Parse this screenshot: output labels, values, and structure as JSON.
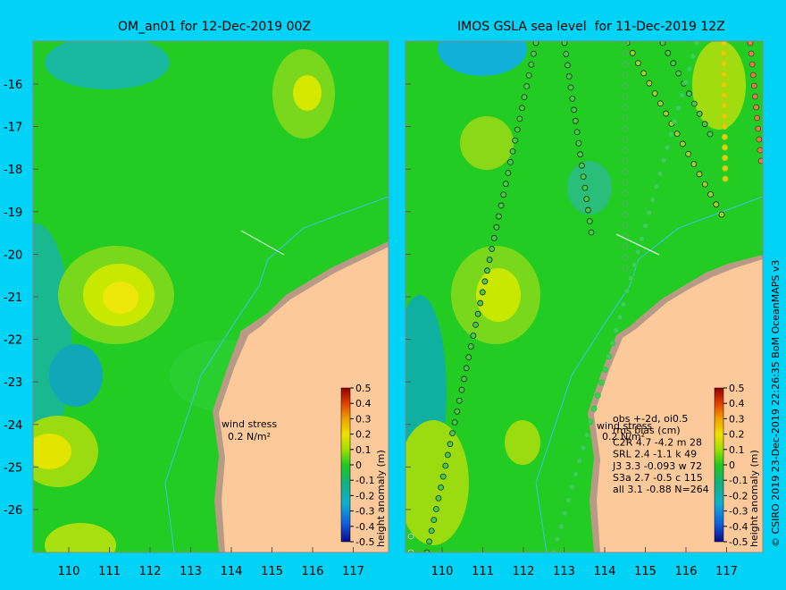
{
  "left_panel": {
    "title": "OM_an01 for 12-Dec-2019 00Z",
    "wind_label": "wind stress",
    "wind_scale": "0.2 N/m²"
  },
  "right_panel": {
    "title": "IMOS GSLA sea level  for 11-Dec-2019 12Z",
    "wind_label": "wind stress",
    "wind_scale": "0.2 N/m²",
    "stats": [
      "obs +-2d, oi0.5",
      "rms bias (cm)",
      "C2R   4.7 -4.2 m 28",
      "SRL   2.4 -1.1 k 49",
      "J3    3.3 -0.093 w 72",
      "S3a   2.7 -0.5 c 115",
      "all   3.1 -0.88 N=264"
    ]
  },
  "y_ticks": [
    "-16",
    "-17",
    "-18",
    "-19",
    "-20",
    "-21",
    "-22",
    "-23",
    "-24",
    "-25",
    "-26"
  ],
  "x_ticks": [
    "110",
    "111",
    "112",
    "113",
    "114",
    "115",
    "116",
    "117"
  ],
  "colorbar": {
    "label": "height anomaly (m)",
    "ticks": [
      "0.5",
      "0.4",
      "0.3",
      "0.2",
      "0.1",
      "0",
      "-0.1",
      "-0.2",
      "-0.3",
      "-0.4",
      "-0.5"
    ],
    "range": [
      -0.5,
      0.5
    ]
  },
  "credit": "© CSIRO 2019   23-Dec-2019 22:26:35 BoM OceanMAPS v3",
  "colors": {
    "background": "#00d3f6",
    "ocean": "#22cc22",
    "land": "#fcc99a",
    "reef": "#b89a86"
  }
}
